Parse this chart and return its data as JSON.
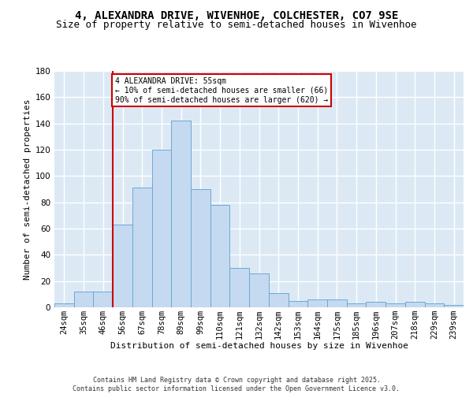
{
  "title_line1": "4, ALEXANDRA DRIVE, WIVENHOE, COLCHESTER, CO7 9SE",
  "title_line2": "Size of property relative to semi-detached houses in Wivenhoe",
  "xlabel": "Distribution of semi-detached houses by size in Wivenhoe",
  "ylabel": "Number of semi-detached properties",
  "categories": [
    "24sqm",
    "35sqm",
    "46sqm",
    "56sqm",
    "67sqm",
    "78sqm",
    "89sqm",
    "99sqm",
    "110sqm",
    "121sqm",
    "132sqm",
    "142sqm",
    "153sqm",
    "164sqm",
    "175sqm",
    "185sqm",
    "196sqm",
    "207sqm",
    "218sqm",
    "229sqm",
    "239sqm"
  ],
  "bar_values": [
    3,
    12,
    12,
    63,
    91,
    120,
    142,
    90,
    78,
    30,
    26,
    11,
    5,
    6,
    6,
    3,
    4,
    3,
    4,
    3,
    2
  ],
  "bar_color": "#c5d9f0",
  "bar_edge_color": "#6aaad4",
  "annotation_text": "4 ALEXANDRA DRIVE: 55sqm\n← 10% of semi-detached houses are smaller (66)\n90% of semi-detached houses are larger (620) →",
  "annotation_box_color": "#ffffff",
  "annotation_box_edge_color": "#cc0000",
  "vline_color": "#cc0000",
  "background_color": "#dce9f5",
  "grid_color": "#ffffff",
  "fig_background": "#ffffff",
  "ylim": [
    0,
    180
  ],
  "footer": "Contains HM Land Registry data © Crown copyright and database right 2025.\nContains public sector information licensed under the Open Government Licence v3.0.",
  "title_fontsize": 10,
  "subtitle_fontsize": 9,
  "axis_label_fontsize": 8,
  "tick_fontsize": 7.5
}
